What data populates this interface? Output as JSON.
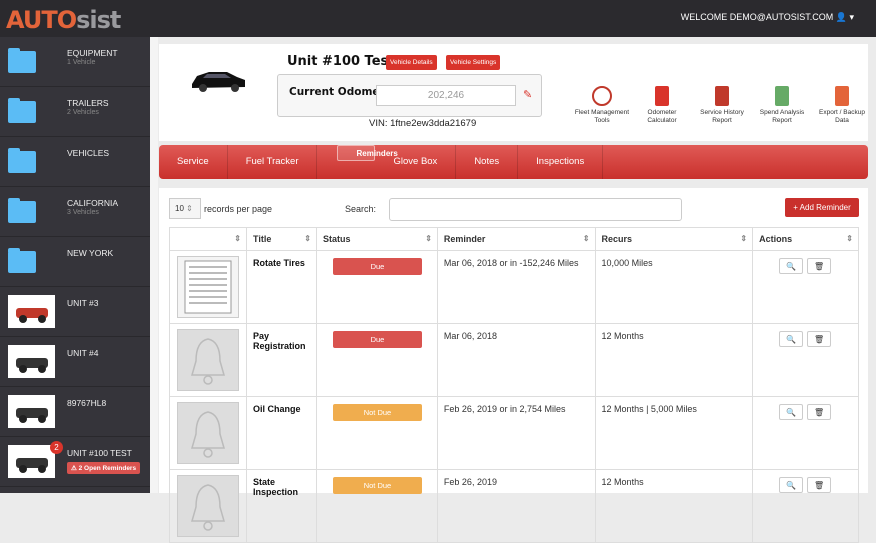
{
  "app": {
    "logo_a": "AUTO",
    "logo_b": "sist",
    "welcome": "WELCOME DEMO@AUTOSIST.COM"
  },
  "sidebar": {
    "items": [
      {
        "name": "EQUIPMENT",
        "sub": "1 Vehicle",
        "icon": "folder"
      },
      {
        "name": "TRAILERS",
        "sub": "2 Vehicles",
        "icon": "folder"
      },
      {
        "name": "VEHICLES",
        "sub": "",
        "icon": "folder"
      },
      {
        "name": "CALIFORNIA",
        "sub": "3 Vehicles",
        "icon": "folder"
      },
      {
        "name": "NEW YORK",
        "sub": "",
        "icon": "folder"
      },
      {
        "name": "UNIT #3",
        "sub": "",
        "icon": "tractor"
      },
      {
        "name": "UNIT #4",
        "sub": "",
        "icon": "car"
      },
      {
        "name": "89767HL8",
        "sub": "",
        "icon": "truck"
      },
      {
        "name": "UNIT #100 TEST",
        "sub": "",
        "icon": "car",
        "badge": "2",
        "alert": "2 Open Reminders"
      }
    ]
  },
  "header": {
    "title": "Unit #100 Test",
    "vehicle_details": "Vehicle Details",
    "vehicle_settings": "Vehicle Settings",
    "odometer_label": "Current Odometer",
    "odometer_value": "202,246",
    "vin": "VIN: 1ftne2ew3dda21679",
    "tools": [
      {
        "l1": "Fleet Management",
        "l2": "Tools"
      },
      {
        "l1": "Odometer",
        "l2": "Calculator"
      },
      {
        "l1": "Service History",
        "l2": "Report"
      },
      {
        "l1": "Spend Analysis",
        "l2": "Report"
      },
      {
        "l1": "Export / Backup",
        "l2": "Data"
      }
    ]
  },
  "tabs": [
    "Service",
    "Fuel Tracker",
    "Reminders",
    "Glove Box",
    "Notes",
    "Inspections"
  ],
  "active_tab": "Reminders",
  "controls": {
    "page_size": "10",
    "records_per_page": "records per page",
    "search_label": "Search:",
    "search_value": "",
    "add_reminder": "+ Add Reminder"
  },
  "table": {
    "columns": [
      "",
      "Title",
      "Status",
      "Reminder",
      "Recurs",
      "Actions"
    ],
    "rows": [
      {
        "title": "Rotate Tires",
        "status": "Due",
        "reminder": "Mar 06, 2018 or in -152,246 Miles",
        "recurs": "10,000 Miles"
      },
      {
        "title": "Pay Registration",
        "status": "Due",
        "reminder": "Mar 06, 2018",
        "recurs": "12 Months"
      },
      {
        "title": "Oil Change",
        "status": "Not Due",
        "reminder": "Feb 26, 2019 or in 2,754 Miles",
        "recurs": "12 Months | 5,000 Miles"
      },
      {
        "title": "State Inspection",
        "status": "Not Due",
        "reminder": "Feb 26, 2019",
        "recurs": "12 Months"
      }
    ]
  },
  "colors": {
    "accent": "#d9342b",
    "due": "#d9534f",
    "not_due": "#f0ad4e",
    "folder": "#5bbcf5",
    "sidebar": "#35343a"
  }
}
